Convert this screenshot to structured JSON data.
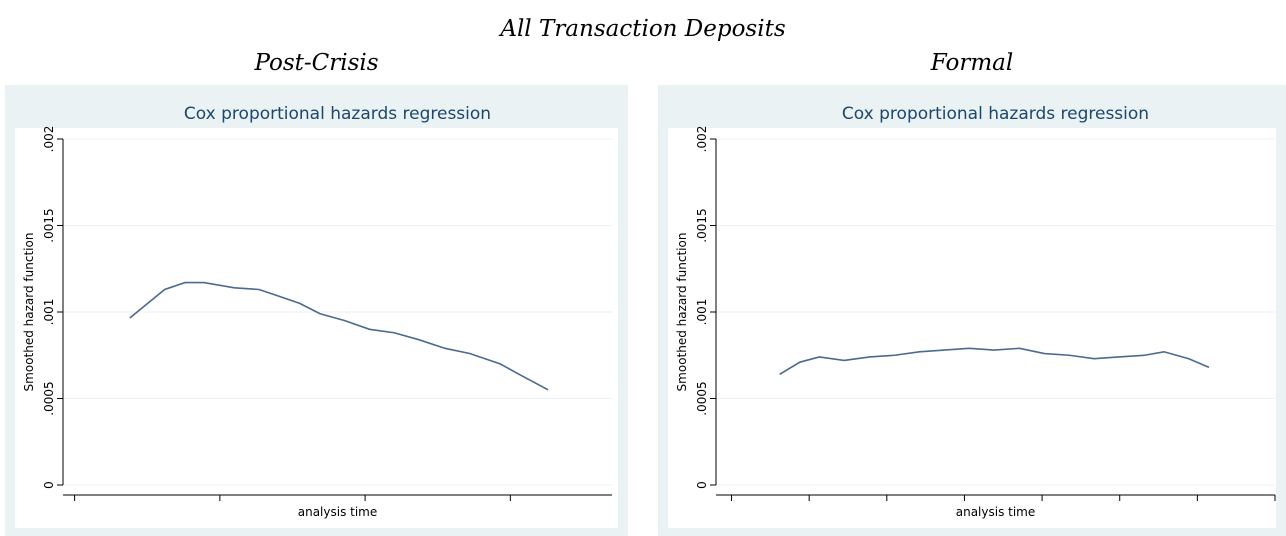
{
  "title": "All Transaction Deposits",
  "chart_data": [
    {
      "type": "line",
      "panel_title": "Post-Crisis",
      "title": "Cox proportional hazards regression",
      "ylabel": "Smoothed hazard function",
      "xlabel": "analysis time",
      "x": [
        0.38,
        0.62,
        0.76,
        0.89,
        1.1,
        1.27,
        1.41,
        1.55,
        1.69,
        1.86,
        2.03,
        2.2,
        2.37,
        2.55,
        2.72,
        2.93,
        3.06,
        3.26
      ],
      "series": [
        {
          "color": "#4a6a90",
          "values": [
            0.000965,
            0.00113,
            0.00117,
            0.00117,
            0.00114,
            0.00113,
            0.00109,
            0.00105,
            0.00099,
            0.00095,
            0.0009,
            0.00088,
            0.00084,
            0.00079,
            0.00076,
            0.0007,
            0.00064,
            0.00055
          ]
        }
      ],
      "xlim": [
        -0.08,
        3.7
      ],
      "xticks": [
        0,
        1,
        2,
        3
      ],
      "ylim": [
        0,
        0.002
      ],
      "yticks": [
        0,
        {
          "value": 0.0005,
          "label": ".0005"
        },
        {
          "value": 0.001,
          "label": ".001"
        },
        {
          "value": 0.0015,
          "label": ".0015"
        },
        {
          "value": 0.002,
          "label": ".002"
        }
      ],
      "grid": true
    },
    {
      "type": "line",
      "panel_title": "Formal",
      "title": "Cox proportional hazards regression",
      "ylabel": "Smoothed hazard function",
      "xlabel": "analysis time",
      "x": [
        0.62,
        0.88,
        1.13,
        1.45,
        1.78,
        2.1,
        2.42,
        2.74,
        3.06,
        3.38,
        3.71,
        4.03,
        4.35,
        4.67,
        4.99,
        5.32,
        5.57,
        5.89,
        6.15
      ],
      "series": [
        {
          "color": "#4a6a90",
          "values": [
            0.00064,
            0.00071,
            0.00074,
            0.00072,
            0.00074,
            0.00075,
            0.00077,
            0.00078,
            0.00079,
            0.00078,
            0.00079,
            0.00076,
            0.00075,
            0.00073,
            0.00074,
            0.00075,
            0.00077,
            0.00073,
            0.00068
          ]
        }
      ],
      "xlim": [
        -0.2,
        7
      ],
      "xticks": [
        0,
        1,
        2,
        3,
        4,
        5,
        6,
        7
      ],
      "ylim": [
        0,
        0.002
      ],
      "yticks": [
        0,
        {
          "value": 0.0005,
          "label": ".0005"
        },
        {
          "value": 0.001,
          "label": ".001"
        },
        {
          "value": 0.0015,
          "label": ".0015"
        },
        {
          "value": 0.002,
          "label": ".002"
        }
      ],
      "grid": true
    }
  ]
}
